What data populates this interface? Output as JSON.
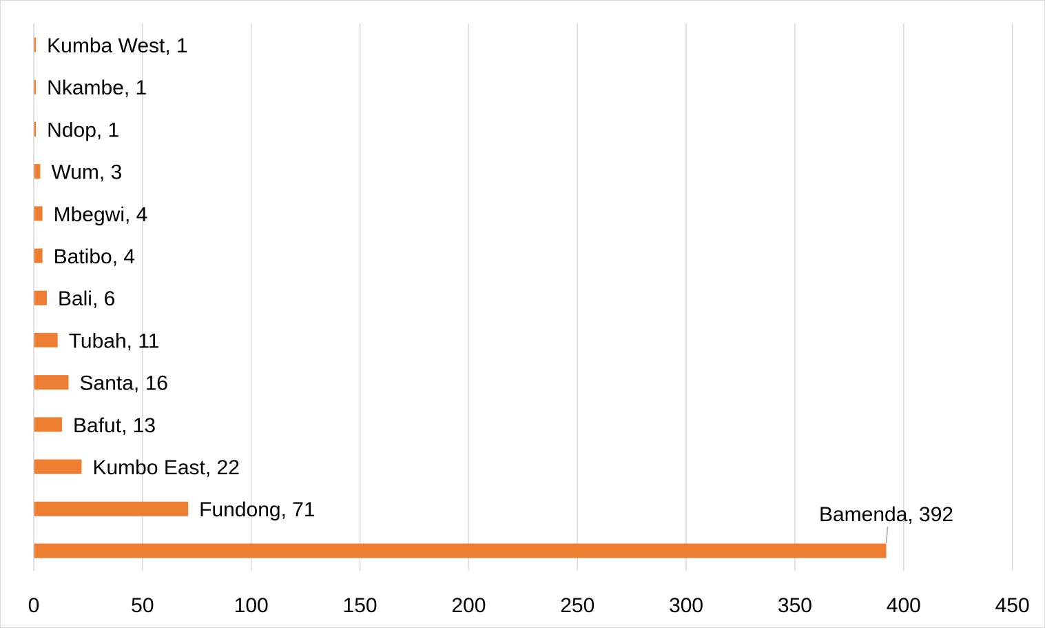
{
  "chart_data": {
    "type": "bar",
    "orientation": "horizontal",
    "categories": [
      "Kumba West",
      "Nkambe",
      "Ndop",
      "Wum",
      "Mbegwi",
      "Batibo",
      "Bali",
      "Tubah",
      "Santa",
      "Bafut",
      "Kumbo East",
      "Fundong",
      "Bamenda"
    ],
    "values": [
      1,
      1,
      1,
      3,
      4,
      4,
      6,
      11,
      16,
      13,
      22,
      71,
      392
    ],
    "data_labels": [
      "Kumba West, 1",
      "Nkambe, 1",
      "Ndop, 1",
      "Wum, 3",
      "Mbegwi, 4",
      "Batibo, 4",
      "Bali, 6",
      "Tubah, 11",
      "Santa, 16",
      "Bafut, 13",
      "Kumbo East, 22",
      "Fundong, 71",
      "Bamenda, 392"
    ],
    "x_ticks": [
      "0",
      "50",
      "100",
      "150",
      "200",
      "250",
      "300",
      "350",
      "400",
      "450"
    ],
    "xlim": [
      0,
      450
    ],
    "grid": "vertical",
    "bar_color": "#ED7D31",
    "grid_color": "#D9D9D9"
  }
}
